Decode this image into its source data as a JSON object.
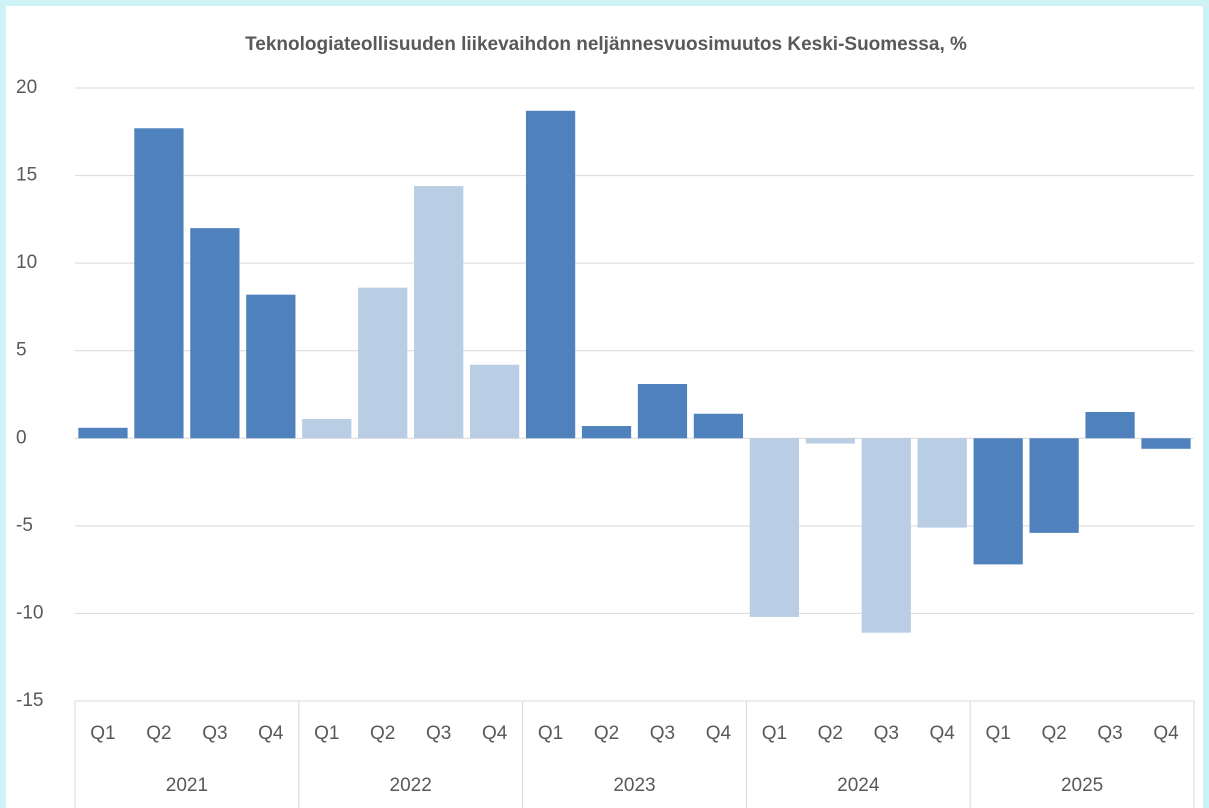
{
  "chart_data": {
    "type": "bar",
    "title": "Teknologiateollisuuden liikevaihdon neljännesvuosimuutos Keski-Suomessa, %",
    "categories": [
      "Q1",
      "Q2",
      "Q3",
      "Q4",
      "Q1",
      "Q2",
      "Q3",
      "Q4",
      "Q1",
      "Q2",
      "Q3",
      "Q4",
      "Q1",
      "Q2",
      "Q3",
      "Q4",
      "Q1",
      "Q2",
      "Q3",
      "Q4"
    ],
    "values": [
      0.6,
      17.7,
      12.0,
      8.2,
      1.1,
      8.6,
      14.4,
      4.2,
      18.7,
      0.7,
      3.1,
      1.4,
      -10.2,
      -0.3,
      -11.1,
      -5.1,
      -7.2,
      -5.4,
      1.5,
      -0.6
    ],
    "groups": [
      {
        "label": "2021",
        "color": "#4f81bd"
      },
      {
        "label": "2022",
        "color": "#b9cde5"
      },
      {
        "label": "2023",
        "color": "#4f81bd"
      },
      {
        "label": "2024",
        "color": "#b9cde5"
      },
      {
        "label": "2025",
        "color": "#4f81bd"
      }
    ],
    "ylim": [
      -15,
      20
    ],
    "yticks": [
      -15,
      -10,
      -5,
      0,
      5,
      10,
      15,
      20
    ],
    "grid": true
  }
}
